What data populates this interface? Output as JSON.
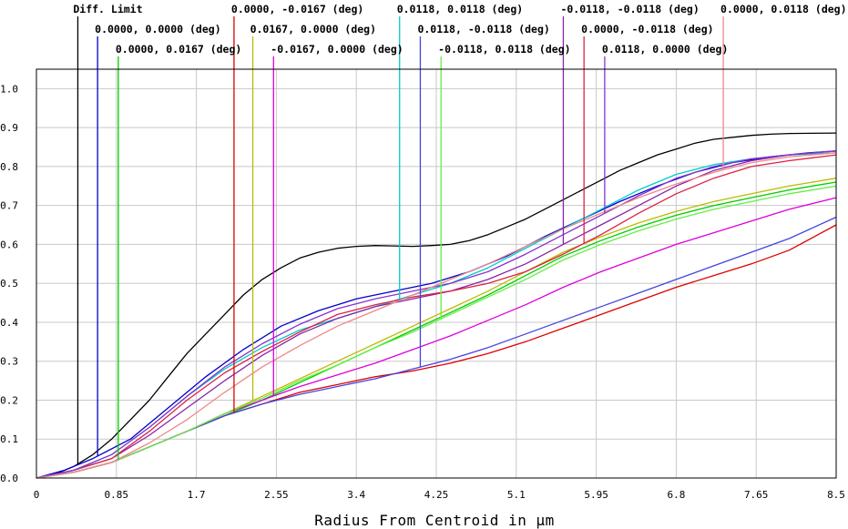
{
  "chart_data": {
    "type": "line",
    "title": "",
    "xlabel": "Radius From Centroid in µm",
    "ylabel": "",
    "xlim": [
      0,
      8.5
    ],
    "ylim": [
      0,
      1.05
    ],
    "grid": true,
    "x_ticks": [
      "0",
      "0.85",
      "1.7",
      "2.55",
      "3.4",
      "4.25",
      "5.1",
      "5.95",
      "6.8",
      "7.65",
      "8.5"
    ],
    "y_ticks": [
      "0.0",
      "0.1",
      "0.2",
      "0.3",
      "0.4",
      "0.5",
      "0.6",
      "0.7",
      "0.8",
      "0.9",
      "1.0"
    ],
    "series": [
      {
        "name": "Diff. Limit",
        "color": "#000000",
        "label_x": 0.44,
        "label_row": 0,
        "x": [
          0,
          0.2,
          0.4,
          0.6,
          0.8,
          1.0,
          1.2,
          1.4,
          1.6,
          1.8,
          2.0,
          2.2,
          2.4,
          2.6,
          2.8,
          3.0,
          3.2,
          3.4,
          3.6,
          3.8,
          4.0,
          4.2,
          4.4,
          4.6,
          4.8,
          5.0,
          5.2,
          5.4,
          5.6,
          5.8,
          6.0,
          6.2,
          6.4,
          6.6,
          6.8,
          7.0,
          7.2,
          7.4,
          7.6,
          7.8,
          8.0,
          8.5
        ],
        "y": [
          0,
          0.01,
          0.03,
          0.06,
          0.1,
          0.15,
          0.2,
          0.26,
          0.32,
          0.37,
          0.42,
          0.47,
          0.51,
          0.54,
          0.565,
          0.58,
          0.59,
          0.595,
          0.597,
          0.596,
          0.595,
          0.597,
          0.6,
          0.61,
          0.625,
          0.645,
          0.665,
          0.69,
          0.715,
          0.74,
          0.765,
          0.79,
          0.81,
          0.83,
          0.845,
          0.86,
          0.87,
          0.875,
          0.88,
          0.883,
          0.885,
          0.886
        ]
      },
      {
        "name": "0.0000, 0.0000 (deg)",
        "color": "#0000cc",
        "label_x": 0.65,
        "label_row": 1,
        "x": [
          0,
          0.3,
          0.6,
          1.0,
          1.4,
          1.8,
          2.2,
          2.6,
          3.0,
          3.4,
          3.8,
          4.2,
          4.6,
          5.0,
          5.4,
          5.8,
          6.2,
          6.6,
          7.0,
          7.4,
          7.8,
          8.2,
          8.5
        ],
        "y": [
          0,
          0.02,
          0.05,
          0.1,
          0.18,
          0.26,
          0.33,
          0.39,
          0.43,
          0.46,
          0.48,
          0.5,
          0.53,
          0.57,
          0.62,
          0.665,
          0.71,
          0.75,
          0.785,
          0.81,
          0.825,
          0.835,
          0.84
        ]
      },
      {
        "name": "0.0000, 0.0167 (deg)",
        "color": "#00cc00",
        "label_x": 0.87,
        "label_row": 2,
        "x": [
          0,
          0.4,
          0.8,
          1.2,
          1.6,
          2.0,
          2.4,
          2.8,
          3.2,
          3.6,
          4.0,
          4.4,
          4.8,
          5.2,
          5.6,
          6.0,
          6.4,
          6.8,
          7.2,
          7.6,
          8.0,
          8.5
        ],
        "y": [
          0,
          0.015,
          0.04,
          0.08,
          0.12,
          0.16,
          0.2,
          0.245,
          0.29,
          0.335,
          0.38,
          0.425,
          0.47,
          0.52,
          0.57,
          0.61,
          0.645,
          0.675,
          0.7,
          0.72,
          0.74,
          0.76
        ]
      },
      {
        "name": "0.0000, -0.0167 (deg)",
        "color": "#dd0000",
        "label_x": 2.1,
        "label_row": 0,
        "x": [
          0,
          0.4,
          0.8,
          1.2,
          1.6,
          2.0,
          2.4,
          2.8,
          3.2,
          3.6,
          4.0,
          4.4,
          4.8,
          5.2,
          5.6,
          6.0,
          6.4,
          6.8,
          7.2,
          7.6,
          8.0,
          8.5
        ],
        "y": [
          0,
          0.015,
          0.04,
          0.08,
          0.12,
          0.16,
          0.19,
          0.22,
          0.24,
          0.26,
          0.275,
          0.295,
          0.32,
          0.35,
          0.385,
          0.42,
          0.455,
          0.49,
          0.52,
          0.55,
          0.585,
          0.65
        ]
      },
      {
        "name": "0.0167, 0.0000 (deg)",
        "color": "#bbbb00",
        "label_x": 2.3,
        "label_row": 1,
        "x": [
          0,
          0.4,
          0.8,
          1.2,
          1.6,
          2.0,
          2.4,
          2.8,
          3.2,
          3.6,
          4.0,
          4.4,
          4.8,
          5.2,
          5.6,
          6.0,
          6.4,
          6.8,
          7.2,
          7.6,
          8.0,
          8.5
        ],
        "y": [
          0,
          0.015,
          0.04,
          0.08,
          0.12,
          0.165,
          0.21,
          0.255,
          0.3,
          0.345,
          0.39,
          0.435,
          0.48,
          0.53,
          0.58,
          0.62,
          0.655,
          0.685,
          0.71,
          0.73,
          0.75,
          0.77
        ]
      },
      {
        "name": "-0.0167, 0.0000 (deg)",
        "color": "#dd00dd",
        "label_x": 2.52,
        "label_row": 2,
        "x": [
          0,
          0.4,
          0.8,
          1.2,
          1.6,
          2.0,
          2.4,
          2.8,
          3.2,
          3.6,
          4.0,
          4.4,
          4.8,
          5.2,
          5.6,
          6.0,
          6.4,
          6.8,
          7.2,
          7.6,
          8.0,
          8.5
        ],
        "y": [
          0,
          0.015,
          0.04,
          0.08,
          0.12,
          0.165,
          0.2,
          0.235,
          0.265,
          0.295,
          0.33,
          0.365,
          0.405,
          0.445,
          0.49,
          0.53,
          0.565,
          0.6,
          0.63,
          0.66,
          0.69,
          0.72
        ]
      },
      {
        "name": "0.0118, 0.0118 (deg)",
        "color": "#00cccc",
        "label_x": 3.86,
        "label_row": 0,
        "x": [
          0,
          0.4,
          0.8,
          1.2,
          1.6,
          2.0,
          2.4,
          2.8,
          3.2,
          3.6,
          4.0,
          4.4,
          4.8,
          5.2,
          5.6,
          6.0,
          6.4,
          6.8,
          7.2,
          7.6,
          8.0,
          8.5
        ],
        "y": [
          0,
          0.02,
          0.06,
          0.13,
          0.21,
          0.28,
          0.335,
          0.38,
          0.41,
          0.44,
          0.47,
          0.5,
          0.54,
          0.59,
          0.64,
          0.69,
          0.74,
          0.78,
          0.805,
          0.82,
          0.83,
          0.835
        ]
      },
      {
        "name": "0.0118, -0.0118 (deg)",
        "color": "#4444dd",
        "label_x": 4.08,
        "label_row": 1,
        "x": [
          0,
          0.4,
          0.8,
          1.2,
          1.6,
          2.0,
          2.4,
          2.8,
          3.2,
          3.6,
          4.0,
          4.4,
          4.8,
          5.2,
          5.6,
          6.0,
          6.4,
          6.8,
          7.2,
          7.6,
          8.0,
          8.5
        ],
        "y": [
          0,
          0.015,
          0.04,
          0.08,
          0.12,
          0.16,
          0.19,
          0.215,
          0.235,
          0.255,
          0.28,
          0.305,
          0.335,
          0.37,
          0.405,
          0.44,
          0.475,
          0.51,
          0.545,
          0.58,
          0.615,
          0.67
        ]
      },
      {
        "name": "-0.0118, 0.0118 (deg)",
        "color": "#66ee44",
        "label_x": 4.3,
        "label_row": 2,
        "x": [
          0,
          0.4,
          0.8,
          1.2,
          1.6,
          2.0,
          2.4,
          2.8,
          3.2,
          3.6,
          4.0,
          4.4,
          4.8,
          5.2,
          5.6,
          6.0,
          6.4,
          6.8,
          7.2,
          7.6,
          8.0,
          8.5
        ],
        "y": [
          0,
          0.015,
          0.04,
          0.08,
          0.12,
          0.165,
          0.205,
          0.25,
          0.29,
          0.335,
          0.375,
          0.42,
          0.465,
          0.51,
          0.56,
          0.6,
          0.635,
          0.665,
          0.69,
          0.71,
          0.73,
          0.75
        ]
      },
      {
        "name": "-0.0118, -0.0118 (deg)",
        "color": "#8822aa",
        "label_x": 5.6,
        "label_row": 0,
        "x": [
          0,
          0.4,
          0.8,
          1.2,
          1.6,
          2.0,
          2.4,
          2.8,
          3.2,
          3.6,
          4.0,
          4.4,
          4.8,
          5.2,
          5.6,
          6.0,
          6.4,
          6.8,
          7.2,
          7.6,
          8.0,
          8.5
        ],
        "y": [
          0,
          0.02,
          0.05,
          0.11,
          0.18,
          0.25,
          0.315,
          0.37,
          0.41,
          0.44,
          0.46,
          0.48,
          0.51,
          0.55,
          0.6,
          0.65,
          0.7,
          0.75,
          0.79,
          0.815,
          0.83,
          0.84
        ]
      },
      {
        "name": "0.0000, -0.0118 (deg)",
        "color": "#dd2244",
        "label_x": 5.82,
        "label_row": 1,
        "x": [
          0,
          0.4,
          0.8,
          1.2,
          1.6,
          2.0,
          2.4,
          2.8,
          3.2,
          3.6,
          4.0,
          4.4,
          4.8,
          5.2,
          5.6,
          6.0,
          6.4,
          6.8,
          7.2,
          7.6,
          8.0,
          8.5
        ],
        "y": [
          0,
          0.02,
          0.05,
          0.12,
          0.2,
          0.27,
          0.325,
          0.375,
          0.42,
          0.445,
          0.465,
          0.48,
          0.5,
          0.53,
          0.575,
          0.625,
          0.68,
          0.73,
          0.77,
          0.8,
          0.815,
          0.83
        ]
      },
      {
        "name": "0.0118, 0.0000 (deg)",
        "color": "#8833cc",
        "label_x": 6.04,
        "label_row": 2,
        "x": [
          0,
          0.4,
          0.8,
          1.2,
          1.6,
          2.0,
          2.4,
          2.8,
          3.2,
          3.6,
          4.0,
          4.4,
          4.8,
          5.2,
          5.6,
          6.0,
          6.4,
          6.8,
          7.2,
          7.6,
          8.0,
          8.5
        ],
        "y": [
          0,
          0.02,
          0.06,
          0.13,
          0.21,
          0.285,
          0.345,
          0.395,
          0.435,
          0.46,
          0.48,
          0.5,
          0.53,
          0.575,
          0.625,
          0.675,
          0.725,
          0.77,
          0.8,
          0.82,
          0.83,
          0.84
        ]
      },
      {
        "name": "0.0000, 0.0118 (deg)",
        "color": "#ee8888",
        "label_x": 7.3,
        "label_row": 0,
        "x": [
          0,
          0.4,
          0.8,
          1.2,
          1.6,
          2.0,
          2.4,
          2.8,
          3.2,
          3.6,
          4.0,
          4.4,
          4.8,
          5.2,
          5.6,
          6.0,
          6.4,
          6.8,
          7.2,
          7.6,
          8.0,
          8.5
        ],
        "y": [
          0,
          0.015,
          0.04,
          0.09,
          0.15,
          0.22,
          0.285,
          0.34,
          0.39,
          0.43,
          0.47,
          0.51,
          0.55,
          0.595,
          0.64,
          0.68,
          0.72,
          0.755,
          0.785,
          0.81,
          0.825,
          0.835
        ]
      }
    ]
  }
}
